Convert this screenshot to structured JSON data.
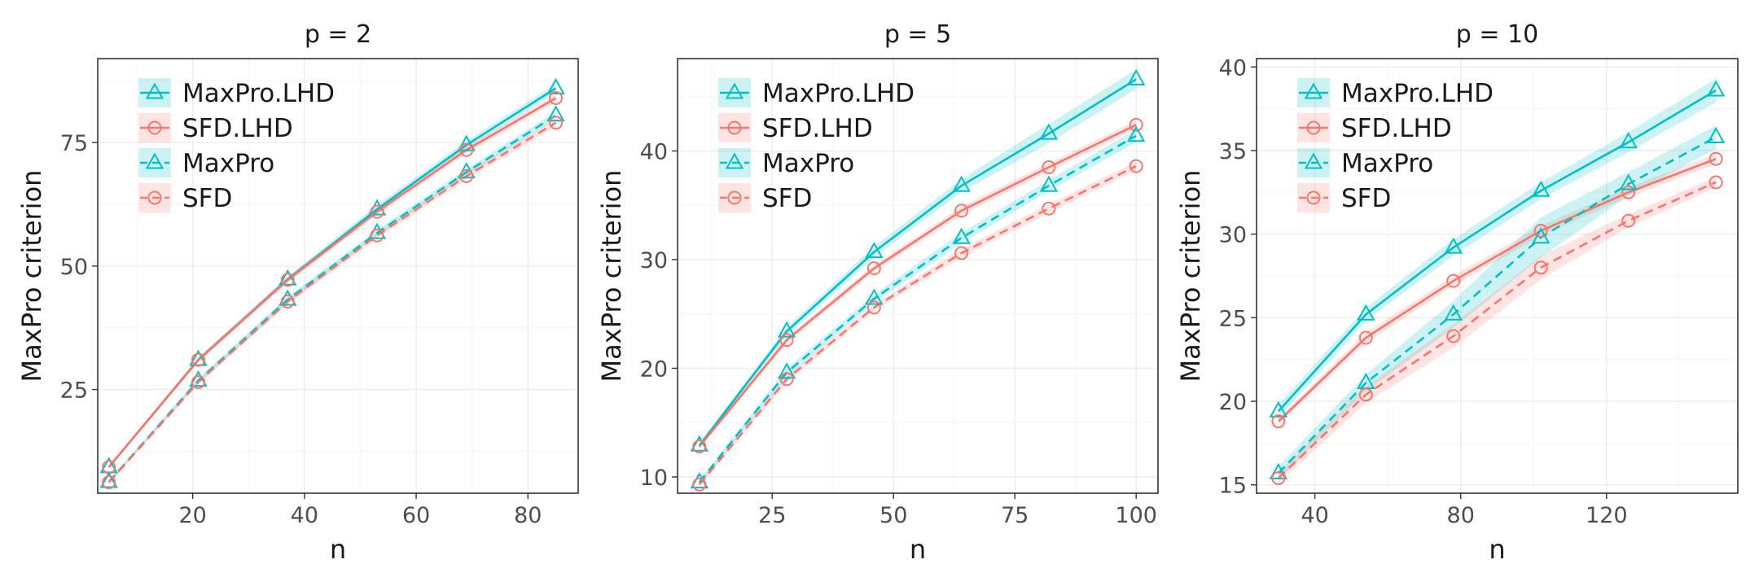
{
  "colors": {
    "maxpro": "#00BFC4",
    "sfd": "#F8766D",
    "grid_major": "#ebebeb",
    "grid_minor": "#f5f5f5",
    "panel_border": "#333333"
  },
  "legend": [
    {
      "label": "MaxPro.LHD",
      "method": "maxpro",
      "dashed": false
    },
    {
      "label": "SFD.LHD",
      "method": "sfd",
      "dashed": false
    },
    {
      "label": "MaxPro",
      "method": "maxpro",
      "dashed": true
    },
    {
      "label": "SFD",
      "method": "sfd",
      "dashed": true
    }
  ],
  "chart_data": [
    {
      "type": "line",
      "title": "p = 2",
      "xlabel": "n",
      "ylabel": "MaxPro criterion",
      "xlim": [
        3,
        89
      ],
      "ylim": [
        4,
        92
      ],
      "xticks": [
        20,
        40,
        60,
        80
      ],
      "xminor": [
        10,
        30,
        50,
        70
      ],
      "yticks": [
        25,
        50,
        75
      ],
      "yminor": [
        12.5,
        37.5,
        62.5,
        87.5
      ],
      "legend_position": "top-left",
      "x": [
        5,
        21,
        37,
        53,
        69,
        85
      ],
      "series": [
        {
          "name": "MaxPro.LHD",
          "method": "maxpro",
          "dashed": false,
          "values": [
            9.3,
            31.0,
            47.3,
            61.5,
            74.5,
            86.0
          ],
          "band": [
            0.3,
            0.5,
            0.6,
            0.9,
            0.8,
            0.9
          ]
        },
        {
          "name": "SFD.LHD",
          "method": "sfd",
          "dashed": false,
          "values": [
            9.3,
            31.0,
            47.2,
            61.0,
            73.5,
            84.0
          ],
          "band": [
            0.3,
            0.5,
            0.6,
            0.7,
            0.7,
            0.8
          ]
        },
        {
          "name": "MaxPro",
          "method": "maxpro",
          "dashed": true,
          "values": [
            6.3,
            26.8,
            43.2,
            56.7,
            69.0,
            80.5
          ],
          "band": [
            0.3,
            0.5,
            0.6,
            0.7,
            0.7,
            0.8
          ]
        },
        {
          "name": "SFD",
          "method": "sfd",
          "dashed": true,
          "values": [
            6.2,
            26.5,
            42.8,
            56.2,
            68.2,
            79.0
          ],
          "band": [
            0.3,
            0.5,
            0.6,
            0.7,
            0.7,
            0.8
          ]
        }
      ]
    },
    {
      "type": "line",
      "title": "p = 5",
      "xlabel": "n",
      "ylabel": "MaxPro criterion",
      "xlim": [
        5.5,
        104.5
      ],
      "ylim": [
        8.5,
        48.5
      ],
      "xticks": [
        25,
        50,
        75,
        100
      ],
      "xminor": [
        12.5,
        37.5,
        62.5,
        87.5
      ],
      "yticks": [
        10,
        20,
        30,
        40
      ],
      "yminor": [
        15,
        25,
        35,
        45
      ],
      "legend_position": "top-left",
      "x": [
        10,
        28,
        46,
        64,
        82,
        100
      ],
      "series": [
        {
          "name": "MaxPro.LHD",
          "method": "maxpro",
          "dashed": false,
          "values": [
            12.9,
            23.4,
            30.7,
            36.8,
            41.6,
            46.6
          ],
          "band": [
            0.2,
            0.4,
            0.5,
            0.6,
            0.9,
            0.9
          ]
        },
        {
          "name": "SFD.LHD",
          "method": "sfd",
          "dashed": false,
          "values": [
            12.8,
            22.6,
            29.2,
            34.5,
            38.5,
            42.4
          ],
          "band": [
            0.2,
            0.3,
            0.3,
            0.4,
            0.4,
            0.4
          ]
        },
        {
          "name": "MaxPro",
          "method": "maxpro",
          "dashed": true,
          "values": [
            9.5,
            19.6,
            26.4,
            32.0,
            36.8,
            41.4
          ],
          "band": [
            0.2,
            0.4,
            0.4,
            0.5,
            0.5,
            0.6
          ]
        },
        {
          "name": "SFD",
          "method": "sfd",
          "dashed": true,
          "values": [
            9.3,
            19.0,
            25.6,
            30.6,
            34.7,
            38.6
          ],
          "band": [
            0.2,
            0.3,
            0.3,
            0.4,
            0.4,
            0.4
          ]
        }
      ]
    },
    {
      "type": "line",
      "title": "p = 10",
      "xlabel": "n",
      "ylabel": "MaxPro criterion",
      "xlim": [
        24,
        156
      ],
      "ylim": [
        14.5,
        40.5
      ],
      "xticks": [
        40,
        80,
        120
      ],
      "xminor": [
        60,
        100,
        140
      ],
      "yticks": [
        15,
        20,
        25,
        30,
        35,
        40
      ],
      "yminor": [
        17.5,
        22.5,
        27.5,
        32.5,
        37.5
      ],
      "legend_position": "top-left",
      "x": [
        30,
        54,
        78,
        102,
        126,
        150
      ],
      "series": [
        {
          "name": "MaxPro.LHD",
          "method": "maxpro",
          "dashed": false,
          "values": [
            19.4,
            25.2,
            29.2,
            32.6,
            35.5,
            38.6
          ],
          "band": [
            0.4,
            0.4,
            0.5,
            0.5,
            0.6,
            0.7
          ]
        },
        {
          "name": "SFD.LHD",
          "method": "sfd",
          "dashed": false,
          "values": [
            18.8,
            23.8,
            27.2,
            30.2,
            32.5,
            34.5
          ],
          "band": [
            0.2,
            0.3,
            0.3,
            0.3,
            0.3,
            0.3
          ]
        },
        {
          "name": "MaxPro",
          "method": "maxpro",
          "dashed": true,
          "values": [
            15.7,
            21.1,
            25.2,
            29.8,
            33.0,
            35.8
          ],
          "band": [
            0.4,
            0.5,
            0.8,
            1.2,
            0.7,
            0.7
          ]
        },
        {
          "name": "SFD",
          "method": "sfd",
          "dashed": true,
          "values": [
            15.4,
            20.4,
            23.9,
            28.0,
            30.8,
            33.1
          ],
          "band": [
            0.3,
            0.5,
            0.7,
            0.7,
            0.4,
            0.3
          ]
        }
      ]
    }
  ]
}
